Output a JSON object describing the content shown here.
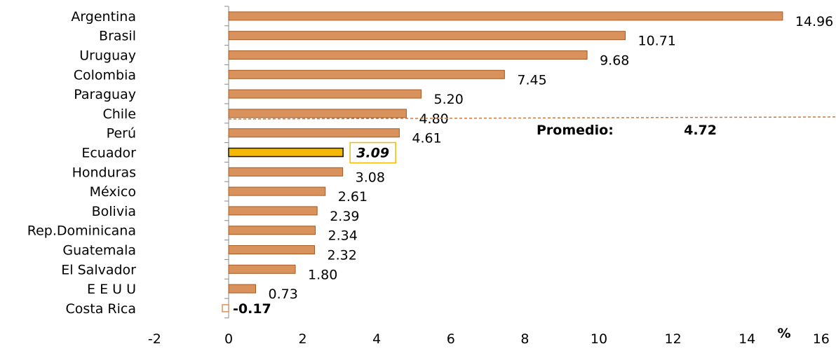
{
  "chart_data": {
    "type": "bar",
    "orientation": "horizontal",
    "categories": [
      "Argentina",
      "Brasil",
      "Uruguay",
      "Colombia",
      "Paraguay",
      "Chile",
      "Perú",
      "Ecuador",
      "Honduras",
      "México",
      "Bolivia",
      "Rep.Dominicana",
      "Guatemala",
      "El Salvador",
      "E E U U",
      "Costa Rica"
    ],
    "values": [
      14.96,
      10.71,
      9.68,
      7.45,
      5.2,
      4.8,
      4.61,
      3.09,
      3.08,
      2.61,
      2.39,
      2.34,
      2.32,
      1.8,
      0.73,
      -0.17
    ],
    "value_labels": [
      "14.96",
      "10.71",
      "9.68",
      "7.45",
      "5.20",
      "4.80",
      "4.61",
      "3.09",
      "3.08",
      "2.61",
      "2.39",
      "2.34",
      "2.32",
      "1.80",
      "0.73",
      "-0.17"
    ],
    "highlight": "Ecuador",
    "xlim": [
      -2,
      16
    ],
    "xticks": [
      "-2",
      "0",
      "2",
      "4",
      "6",
      "8",
      "10",
      "12",
      "14",
      "16"
    ],
    "xunit": "%",
    "grid": false,
    "reference_line": {
      "label": "Promedio:",
      "value": 4.72,
      "value_label": "4.72"
    },
    "colors": {
      "bar": "#d9925c",
      "bar_border": "#a55a25",
      "highlight_fill": "#f5b800",
      "highlight_border": "#111111",
      "highlight_box": "#f5b800",
      "negative": "#d9925c",
      "reference_line": "#c87941",
      "axis": "#888888"
    }
  }
}
